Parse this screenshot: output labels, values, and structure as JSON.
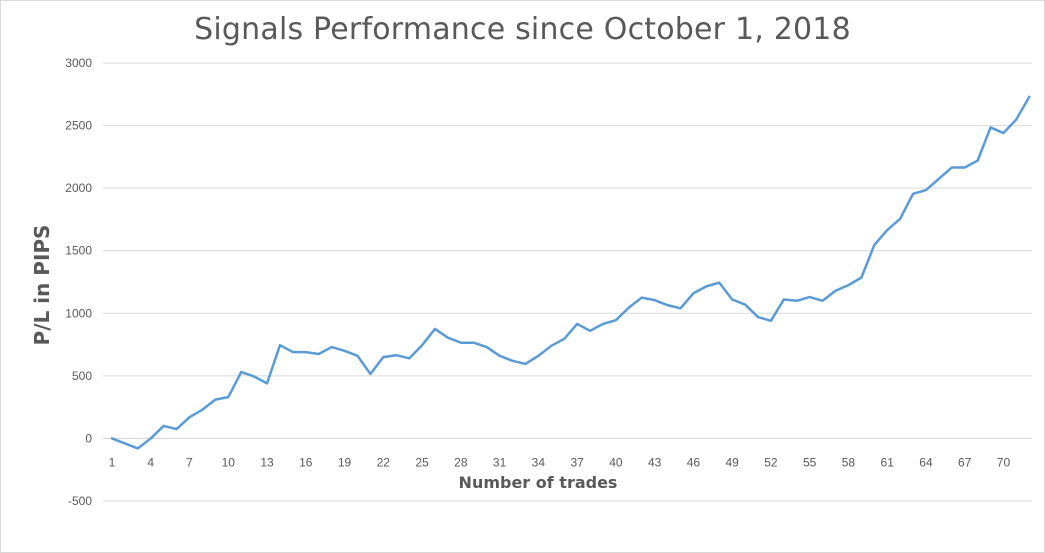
{
  "chart_data": {
    "type": "line",
    "title": "Signals Performance since October 1, 2018",
    "xlabel": "Number of trades",
    "ylabel": "P/L in PIPS",
    "ylim": [
      -500,
      3000
    ],
    "yticks": [
      -500,
      0,
      500,
      1000,
      1500,
      2000,
      2500,
      3000
    ],
    "xticks": [
      1,
      4,
      7,
      10,
      13,
      16,
      19,
      22,
      25,
      28,
      31,
      34,
      37,
      40,
      43,
      46,
      49,
      52,
      55,
      58,
      61,
      64,
      67,
      70
    ],
    "grid": true,
    "line_color": "#5b9bd5",
    "series": [
      {
        "x": [
          1,
          2,
          3,
          4,
          5,
          6,
          7,
          8,
          9,
          10,
          11,
          12,
          13,
          14,
          15,
          16,
          17,
          18,
          19,
          20,
          21,
          22,
          23,
          24,
          25,
          26,
          27,
          28,
          29,
          30,
          31,
          32,
          33,
          34,
          35,
          36,
          37,
          38,
          39,
          40,
          41,
          42,
          43,
          44,
          45,
          46,
          47,
          48,
          49,
          50,
          51,
          52,
          53,
          54,
          55,
          56,
          57,
          58,
          59,
          60,
          61,
          62,
          63,
          64,
          65,
          66,
          67,
          68,
          69,
          70,
          71,
          72
        ],
        "values": [
          0,
          -40,
          -80,
          0,
          100,
          75,
          170,
          230,
          310,
          330,
          530,
          495,
          440,
          745,
          690,
          690,
          675,
          730,
          700,
          660,
          515,
          650,
          665,
          640,
          745,
          875,
          805,
          765,
          765,
          730,
          660,
          620,
          595,
          660,
          740,
          795,
          915,
          860,
          915,
          945,
          1045,
          1125,
          1105,
          1065,
          1040,
          1160,
          1215,
          1245,
          1110,
          1070,
          970,
          940,
          1110,
          1100,
          1130,
          1100,
          1180,
          1225,
          1285,
          1545,
          1665,
          1755,
          1955,
          1985,
          2075,
          2165,
          2165,
          2220,
          2485,
          2440,
          2550,
          2730
        ]
      }
    ]
  }
}
